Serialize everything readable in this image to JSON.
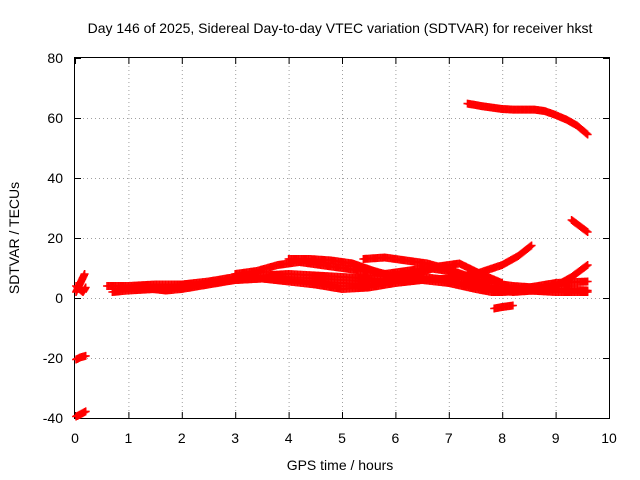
{
  "chart_data": {
    "type": "scatter",
    "title": "Day 146 of 2025, Sidereal Day-to-day VTEC variation (SDTVAR) for receiver hkst",
    "xlabel": "GPS time / hours",
    "ylabel": "SDTVAR / TECUs",
    "xlim": [
      0,
      10
    ],
    "ylim": [
      -40,
      80
    ],
    "xticks": [
      0,
      1,
      2,
      3,
      4,
      5,
      6,
      7,
      8,
      9,
      10
    ],
    "yticks": [
      -40,
      -20,
      0,
      20,
      40,
      60,
      80
    ],
    "grid": true,
    "marker": "plus",
    "color": "#ff0000",
    "series": [
      {
        "x": [
          0.02,
          0.1,
          0.2
        ],
        "y": [
          -39.5,
          -38.8,
          -37.8
        ]
      },
      {
        "x": [
          0.02,
          0.1,
          0.2
        ],
        "y": [
          -20.5,
          -19.8,
          -19.3
        ]
      },
      {
        "x": [
          0.02,
          0.1,
          0.18
        ],
        "y": [
          2.0,
          5.0,
          8.0
        ]
      },
      {
        "x": [
          0.02,
          0.08,
          0.15,
          0.2
        ],
        "y": [
          4.0,
          3.0,
          2.0,
          3.5
        ]
      },
      {
        "x": [
          0.6,
          1.0,
          1.5,
          2.0,
          2.5,
          3.0,
          3.5,
          4.0,
          4.5,
          5.0,
          5.5,
          6.0,
          6.5,
          7.0,
          7.5,
          8.0,
          8.3,
          8.55
        ],
        "y": [
          4.0,
          4.0,
          4.5,
          4.5,
          5.5,
          7.0,
          7.5,
          8.0,
          7.5,
          7.0,
          6.5,
          6.0,
          6.0,
          6.5,
          8.0,
          11.0,
          14.0,
          17.5
        ]
      },
      {
        "x": [
          0.7,
          1.0,
          1.5,
          2.0,
          2.5,
          3.0,
          3.5,
          4.0,
          4.5,
          5.0,
          5.5,
          6.0,
          6.5,
          7.0,
          7.5,
          7.8,
          8.0,
          8.5,
          9.0,
          9.6
        ],
        "y": [
          2.0,
          2.5,
          3.0,
          3.5,
          5.0,
          6.0,
          6.5,
          5.5,
          4.5,
          3.0,
          3.5,
          5.0,
          6.0,
          5.0,
          3.0,
          2.0,
          2.0,
          2.5,
          2.0,
          2.0
        ]
      },
      {
        "x": [
          0.8,
          1.2,
          1.7,
          2.0,
          2.5,
          3.0,
          3.5,
          4.0,
          4.5,
          5.0,
          5.5,
          6.0,
          6.5,
          7.0,
          7.5,
          8.0,
          8.5,
          9.0,
          9.6
        ],
        "y": [
          3.0,
          3.5,
          2.5,
          3.0,
          4.5,
          6.0,
          6.5,
          6.0,
          5.5,
          5.0,
          4.5,
          6.0,
          7.0,
          6.0,
          4.0,
          2.5,
          3.5,
          5.0,
          5.5
        ]
      },
      {
        "x": [
          3.0,
          3.4,
          3.8,
          4.2,
          4.6,
          5.0,
          5.4,
          5.8,
          6.2,
          6.6,
          7.0,
          7.4,
          7.8,
          8.2,
          8.6,
          9.0,
          9.3,
          9.6
        ],
        "y": [
          8.0,
          9.0,
          11.0,
          12.0,
          11.0,
          10.0,
          9.0,
          8.0,
          9.0,
          10.0,
          9.0,
          6.0,
          3.0,
          2.0,
          2.5,
          4.0,
          7.0,
          11.0
        ]
      },
      {
        "x": [
          4.0,
          4.4,
          4.8,
          5.2,
          5.6,
          6.0,
          6.4,
          6.8,
          7.2,
          7.6,
          8.0
        ],
        "y": [
          13.0,
          13.0,
          12.5,
          11.5,
          9.0,
          7.0,
          8.0,
          10.5,
          11.5,
          8.0,
          5.0
        ]
      },
      {
        "x": [
          5.4,
          5.8,
          6.2,
          6.6,
          7.0,
          7.4,
          7.8,
          8.2,
          8.6,
          9.0,
          9.6
        ],
        "y": [
          13.0,
          13.5,
          12.5,
          11.5,
          9.5,
          7.0,
          5.0,
          4.0,
          3.5,
          3.0,
          2.5
        ]
      },
      {
        "x": [
          7.85,
          8.0,
          8.2
        ],
        "y": [
          -3.5,
          -3.0,
          -2.5
        ]
      },
      {
        "x": [
          7.35,
          7.6,
          7.8,
          8.0,
          8.2,
          8.4,
          8.6,
          8.8,
          9.0,
          9.2,
          9.4,
          9.6
        ],
        "y": [
          64.8,
          64.0,
          63.5,
          63.0,
          62.8,
          62.8,
          62.8,
          62.3,
          61.0,
          59.5,
          57.5,
          54.5
        ]
      },
      {
        "x": [
          9.3,
          9.45,
          9.6
        ],
        "y": [
          26.0,
          24.0,
          22.0
        ]
      }
    ]
  }
}
